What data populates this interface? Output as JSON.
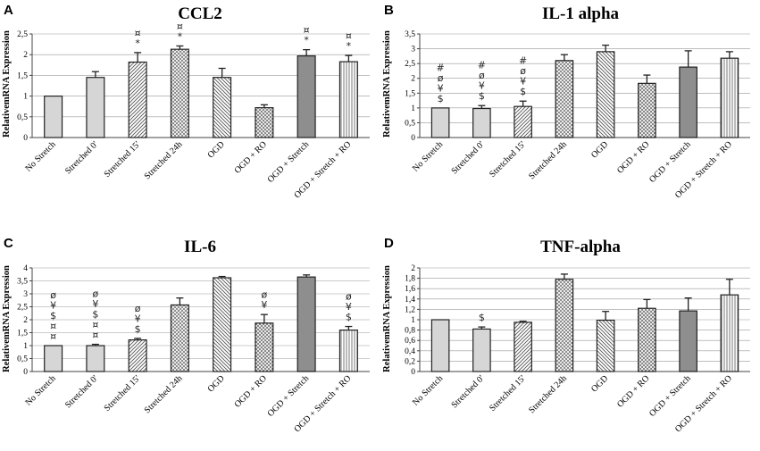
{
  "colors": {
    "solid_light": "#d6d6d6",
    "solid_dark": "#8e8e8e",
    "hatch": "#555555",
    "axis": "#444444"
  },
  "chart_data": [
    {
      "type": "bar",
      "panel_letter": "A",
      "title": "CCL2",
      "ylabel": "RelativemRNA Expression",
      "ylim": [
        0,
        2.5
      ],
      "yticks": [
        "0",
        "0,5",
        "1",
        "1,5",
        "2",
        "2,5"
      ],
      "ytick_values": [
        0,
        0.5,
        1,
        1.5,
        2,
        2.5
      ],
      "categories": [
        "No Stretch",
        "Stretched 0'",
        "Stretched 15'",
        "Stretched 24h",
        "OGD",
        "OGD + RO",
        "OGD + Stretch",
        "OGD + Stretch + RO"
      ],
      "values": [
        1.0,
        1.45,
        1.82,
        2.13,
        1.45,
        0.72,
        1.97,
        1.83
      ],
      "errors": [
        0,
        0.14,
        0.23,
        0.08,
        0.22,
        0.07,
        0.15,
        0.15
      ],
      "patterns": [
        "solid",
        "solid",
        "diag-right",
        "cross",
        "diag-left",
        "dots",
        "solid-dark",
        "vertical"
      ],
      "annotations": [
        [],
        [],
        [
          "¤",
          "*"
        ],
        [
          "¤",
          "*"
        ],
        [],
        [],
        [
          "¤",
          "*"
        ],
        [
          "¤",
          "*"
        ]
      ]
    },
    {
      "type": "bar",
      "panel_letter": "B",
      "title": "IL-1 alpha",
      "ylabel": "RelativemRNA Expression",
      "ylim": [
        0,
        3.5
      ],
      "yticks": [
        "0",
        "0,5",
        "1",
        "1,5",
        "2",
        "2,5",
        "3",
        "3,5"
      ],
      "ytick_values": [
        0,
        0.5,
        1,
        1.5,
        2,
        2.5,
        3,
        3.5
      ],
      "categories": [
        "No Stretch",
        "Stretched 0'",
        "Stretched 15'",
        "Stretched 24h",
        "OGD",
        "OGD + RO",
        "OGD + Stretch",
        "OGD + Stretch + RO"
      ],
      "values": [
        1.0,
        0.98,
        1.05,
        2.6,
        2.9,
        1.83,
        2.38,
        2.68
      ],
      "errors": [
        0,
        0.1,
        0.18,
        0.2,
        0.22,
        0.28,
        0.55,
        0.22
      ],
      "patterns": [
        "solid",
        "solid",
        "diag-right",
        "cross",
        "diag-left",
        "dots",
        "solid-dark",
        "vertical"
      ],
      "annotations": [
        [
          "#",
          "ø",
          "¥",
          "$"
        ],
        [
          "#",
          "ø",
          "¥",
          "$"
        ],
        [
          "#",
          "ø",
          "¥",
          "$"
        ],
        [],
        [],
        [],
        [],
        []
      ]
    },
    {
      "type": "bar",
      "panel_letter": "C",
      "title": "IL-6",
      "ylabel": "RelativemRNA Expression",
      "ylim": [
        0,
        4
      ],
      "yticks": [
        "0",
        "0,5",
        "1",
        "1,5",
        "2",
        "2,5",
        "3",
        "3,5",
        "4"
      ],
      "ytick_values": [
        0,
        0.5,
        1,
        1.5,
        2,
        2.5,
        3,
        3.5,
        4
      ],
      "categories": [
        "No Stretch",
        "Stretched 0'",
        "Stretched 15'",
        "Stretched 24h",
        "OGD",
        "OGD + RO",
        "OGD + Stretch",
        "OGD + Stretch + RO"
      ],
      "values": [
        1.0,
        1.0,
        1.22,
        2.57,
        3.62,
        1.87,
        3.65,
        1.6
      ],
      "errors": [
        0,
        0.05,
        0.06,
        0.27,
        0.05,
        0.33,
        0.08,
        0.14
      ],
      "patterns": [
        "solid",
        "solid",
        "diag-right",
        "cross",
        "diag-left",
        "dots",
        "solid-dark",
        "vertical"
      ],
      "annotations": [
        [
          "ø",
          "¥",
          "$",
          "¤",
          "¤"
        ],
        [
          "ø",
          "¥",
          "$",
          "¤",
          "¤"
        ],
        [
          "ø",
          "¥",
          "$"
        ],
        [],
        [],
        [
          "ø",
          "¥"
        ],
        [],
        [
          "ø",
          "¥",
          "$"
        ]
      ]
    },
    {
      "type": "bar",
      "panel_letter": "D",
      "title": "TNF-alpha",
      "ylabel": "RelativemRNA Expression",
      "ylim": [
        0,
        2
      ],
      "yticks": [
        "0",
        "0,2",
        "0,4",
        "0,6",
        "0,8",
        "1",
        "1,2",
        "1,4",
        "1,6",
        "1,8",
        "2"
      ],
      "ytick_values": [
        0,
        0.2,
        0.4,
        0.6,
        0.8,
        1.0,
        1.2,
        1.4,
        1.6,
        1.8,
        2.0
      ],
      "categories": [
        "No Stretch",
        "Stretched 0'",
        "Stretched 15'",
        "Stretched 24h",
        "OGD",
        "OGD + RO",
        "OGD + Stretch",
        "OGD + Stretch + RO"
      ],
      "values": [
        1.0,
        0.82,
        0.95,
        1.78,
        0.99,
        1.22,
        1.17,
        1.48
      ],
      "errors": [
        0,
        0.04,
        0.02,
        0.1,
        0.17,
        0.17,
        0.25,
        0.3
      ],
      "patterns": [
        "solid",
        "solid",
        "diag-right",
        "cross",
        "diag-left",
        "dots",
        "solid-dark",
        "vertical"
      ],
      "annotations": [
        [],
        [
          "$"
        ],
        [],
        [],
        [],
        [],
        [],
        []
      ]
    }
  ]
}
